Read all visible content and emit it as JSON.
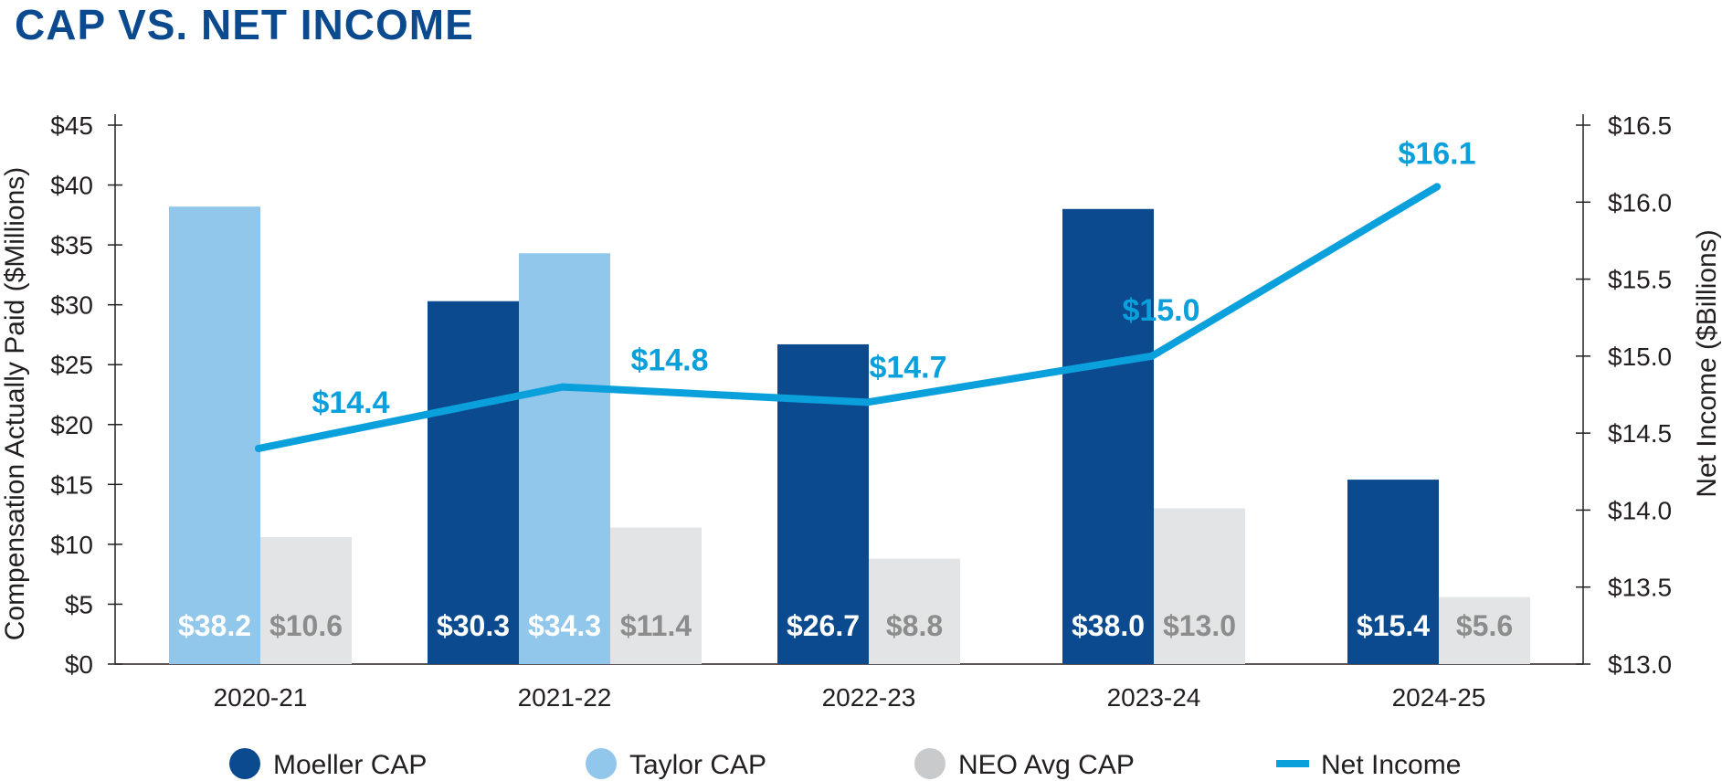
{
  "title": "CAP VS. NET INCOME",
  "colors": {
    "moeller": "#0b4a8f",
    "taylor": "#92c7ec",
    "neo": "#e3e4e5",
    "neo_label": "#8c8c8c",
    "net_income": "#0aa0dc",
    "axis": "#231f20"
  },
  "chart_data": {
    "type": "bar",
    "title": "CAP VS. NET INCOME",
    "categories": [
      "2020-21",
      "2021-22",
      "2022-23",
      "2023-24",
      "2024-25"
    ],
    "ylabel": "Compensation Actually Paid ($Millions)",
    "ylim": [
      0,
      45
    ],
    "y_ticks": [
      "$0",
      "$5",
      "$10",
      "$15",
      "$20",
      "$25",
      "$30",
      "$35",
      "$40",
      "$45"
    ],
    "y2label": "Net Income ($Billions)",
    "y2lim": [
      13.0,
      16.5
    ],
    "y2_ticks": [
      "$13.0",
      "$13.5",
      "$14.0",
      "$14.5",
      "$15.0",
      "$15.5",
      "$16.0",
      "$16.5"
    ],
    "series": [
      {
        "name": "Moeller CAP",
        "key": "moeller",
        "values": [
          null,
          30.3,
          26.7,
          38.0,
          15.4
        ],
        "labels": [
          null,
          "$30.3",
          "$26.7",
          "$38.0",
          "$15.4"
        ]
      },
      {
        "name": "Taylor CAP",
        "key": "taylor",
        "values": [
          38.2,
          34.3,
          null,
          null,
          null
        ],
        "labels": [
          "$38.2",
          "$34.3",
          null,
          null,
          null
        ]
      },
      {
        "name": "NEO Avg CAP",
        "key": "neo",
        "values": [
          10.6,
          11.4,
          8.8,
          13.0,
          5.6
        ],
        "labels": [
          "$10.6",
          "$11.4",
          "$8.8",
          "$13.0",
          "$5.6"
        ]
      }
    ],
    "line_series": {
      "name": "Net Income",
      "type": "line",
      "axis": "right",
      "values": [
        14.4,
        14.8,
        14.7,
        15.0,
        16.1
      ],
      "labels": [
        "$14.4",
        "$14.8",
        "$14.7",
        "$15.0",
        "$16.1"
      ]
    },
    "legend": [
      "Moeller CAP",
      "Taylor CAP",
      "NEO Avg CAP",
      "Net Income"
    ],
    "legend_position": "bottom"
  }
}
